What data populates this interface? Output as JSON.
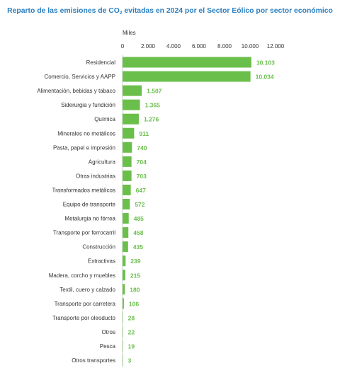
{
  "title": {
    "before": "Reparto de las emisiones de CO",
    "subscript": "2",
    "after": " evitadas en 2024 por el Sector Eólico por sector económico"
  },
  "chart_data": {
    "type": "bar",
    "orientation": "horizontal",
    "title": "Reparto de las emisiones de CO2 evitadas en 2024 por el Sector Eólico por sector económico",
    "unit_label": "Miles",
    "xlim": [
      0,
      12000
    ],
    "ticks": [
      0,
      2000,
      4000,
      6000,
      8000,
      10000,
      12000
    ],
    "tick_labels": [
      "0",
      "2.000",
      "4.000",
      "6.000",
      "8.000",
      "10.000",
      "12.000"
    ],
    "categories": [
      "Residencial",
      "Comercio, Servicios y AAPP",
      "Alimentación, bebidas y tabaco",
      "Siderurgia y fundición",
      "Química",
      "Minerales no metálicos",
      "Pasta, papel e impresión",
      "Agricultura",
      "Otras industrias",
      "Transformados metálicos",
      "Equipo de transporte",
      "Metalurgia no férrea",
      "Transporte por ferrocarril",
      "Construcción",
      "Extractivas",
      "Madera, corcho y muebles",
      "Textil, cuero y calzado",
      "Transporte por carretera",
      "Transporte por oleoducto",
      "Otros",
      "Pesca",
      "Otros transportes"
    ],
    "values": [
      10103,
      10034,
      1507,
      1365,
      1276,
      911,
      740,
      704,
      703,
      647,
      572,
      485,
      458,
      435,
      239,
      215,
      180,
      106,
      28,
      22,
      19,
      3
    ],
    "value_labels": [
      "10.103",
      "10.034",
      "1.507",
      "1.365",
      "1.276",
      "911",
      "740",
      "704",
      "703",
      "647",
      "572",
      "485",
      "458",
      "435",
      "239",
      "215",
      "180",
      "106",
      "28",
      "22",
      "19",
      "3"
    ],
    "colors": {
      "bar": "#6abf4b",
      "value_label": "#6abf4b",
      "title": "#2a7fc1",
      "axis_text": "#333333",
      "baseline": "#cccccc"
    },
    "grid": false,
    "legend": "none"
  }
}
